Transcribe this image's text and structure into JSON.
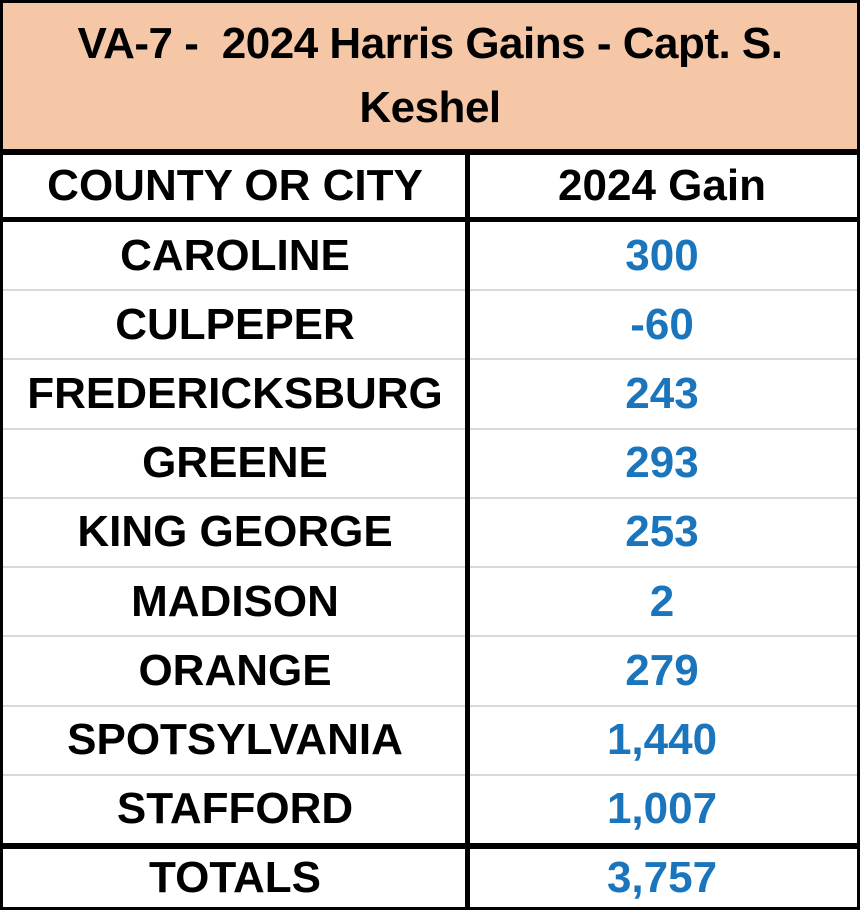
{
  "title": "VA-7 -  2024 Harris Gains - Capt. S. Keshel",
  "header": {
    "county_col": "COUNTY OR CITY",
    "gain_col": "2024 Gain"
  },
  "rows": [
    {
      "county": "CAROLINE",
      "gain": "300"
    },
    {
      "county": "CULPEPER",
      "gain": "-60"
    },
    {
      "county": "FREDERICKSBURG",
      "gain": "243"
    },
    {
      "county": "GREENE",
      "gain": "293"
    },
    {
      "county": "KING GEORGE",
      "gain": "253"
    },
    {
      "county": "MADISON",
      "gain": "2"
    },
    {
      "county": "ORANGE",
      "gain": "279"
    },
    {
      "county": "SPOTSYLVANIA",
      "gain": "1,440"
    },
    {
      "county": "STAFFORD",
      "gain": "1,007"
    }
  ],
  "totals": {
    "label": "TOTALS",
    "gain": "3,757"
  },
  "colors": {
    "title_background": "#F6C7A7",
    "gain_blue": "#1B75BC",
    "row_divider_gray": "#D9D9D9",
    "border_black": "#000000"
  },
  "chart_data": {
    "type": "table",
    "title": "VA-7 -  2024 Harris Gains - Capt. S. Keshel",
    "columns": [
      "COUNTY OR CITY",
      "2024 Gain"
    ],
    "rows": [
      [
        "CAROLINE",
        300
      ],
      [
        "CULPEPER",
        -60
      ],
      [
        "FREDERICKSBURG",
        243
      ],
      [
        "GREENE",
        293
      ],
      [
        "KING GEORGE",
        253
      ],
      [
        "MADISON",
        2
      ],
      [
        "ORANGE",
        279
      ],
      [
        "SPOTSYLVANIA",
        1440
      ],
      [
        "STAFFORD",
        1007
      ]
    ],
    "totals_row": [
      "TOTALS",
      3757
    ],
    "value_color": "#1B75BC",
    "layout": "two-column table, peach title banner, bold condensed sans text"
  }
}
